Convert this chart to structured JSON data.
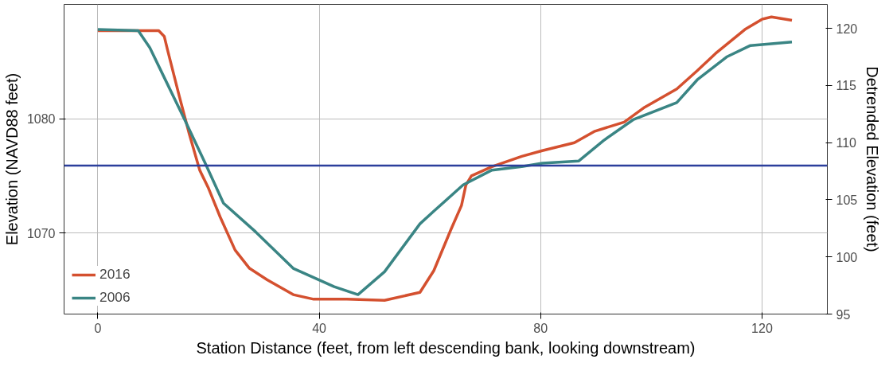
{
  "chart_data": {
    "type": "line",
    "xlabel": "Station Distance (feet, from left descending bank, looking downstream)",
    "ylabel": "Elevation (NAVD88 feet)",
    "y2label": "Detrended Elevation (feet)",
    "xlim": [
      -6.1,
      131.8
    ],
    "ylim": [
      1062.9,
      1090.0
    ],
    "y2lim": [
      95,
      122.1
    ],
    "xticks": [
      0,
      40,
      80,
      120
    ],
    "yticks": [
      1070,
      1080
    ],
    "y2ticks": [
      95,
      100,
      105,
      110,
      115,
      120
    ],
    "grid": true,
    "legend": "bottom left",
    "marker": "none",
    "line_style": "solid",
    "ref_lines": [
      {
        "axis": "y",
        "value": 1075.9,
        "color": "#2b3f9c"
      }
    ],
    "series": [
      {
        "name": "2016",
        "color": "#d4502f",
        "x": [
          0,
          11.0,
          12.0,
          12.6,
          14.7,
          16.5,
          18.4,
          20.0,
          22.1,
          24.8,
          27.4,
          30.6,
          35.3,
          39.0,
          45.0,
          51.8,
          58.2,
          60.7,
          63.8,
          65.7,
          66.5,
          67.5,
          71.2,
          76.6,
          80.3,
          86.1,
          89.8,
          95.1,
          98.8,
          104.6,
          108.3,
          111.6,
          116.9,
          120.0,
          121.7,
          125.4
        ],
        "values": [
          1087.7,
          1087.7,
          1087.2,
          1086.0,
          1082.0,
          1078.7,
          1075.5,
          1073.9,
          1071.4,
          1068.5,
          1066.9,
          1065.9,
          1064.6,
          1064.2,
          1064.2,
          1064.1,
          1064.8,
          1066.7,
          1070.3,
          1072.4,
          1074.2,
          1075.0,
          1075.8,
          1076.7,
          1077.2,
          1077.9,
          1078.9,
          1079.7,
          1081.0,
          1082.6,
          1084.2,
          1085.7,
          1087.8,
          1088.7,
          1088.9,
          1088.6
        ]
      },
      {
        "name": "2006",
        "color": "#3a8584",
        "x": [
          0,
          7.3,
          9.4,
          12.0,
          15.7,
          19.4,
          22.7,
          28.5,
          35.3,
          42.7,
          47.0,
          51.8,
          58.2,
          60.7,
          66.0,
          71.2,
          76.6,
          80.3,
          86.9,
          91.4,
          96.7,
          104.6,
          108.3,
          113.6,
          117.9,
          125.4
        ],
        "values": [
          1087.8,
          1087.7,
          1086.2,
          1083.6,
          1079.9,
          1076.1,
          1072.6,
          1070.1,
          1066.9,
          1065.3,
          1064.6,
          1066.6,
          1070.8,
          1071.9,
          1074.2,
          1075.5,
          1075.8,
          1076.1,
          1076.3,
          1078.1,
          1079.9,
          1081.4,
          1083.4,
          1085.4,
          1086.4,
          1086.7
        ]
      }
    ]
  }
}
